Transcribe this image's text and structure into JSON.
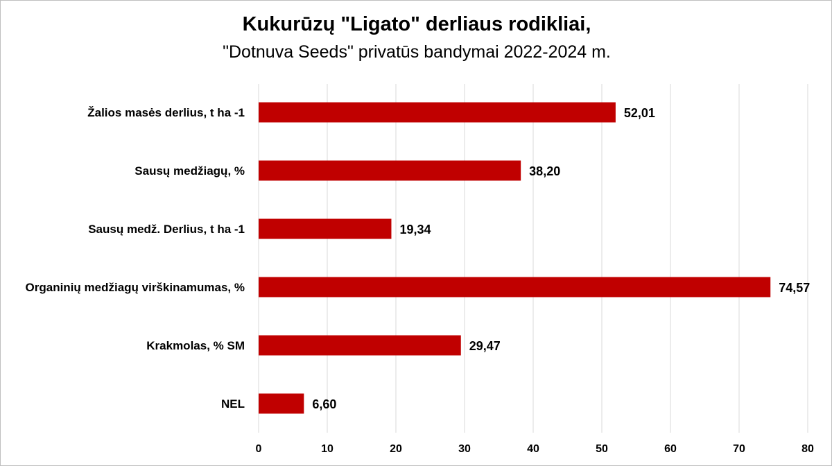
{
  "chart_data": {
    "type": "bar",
    "orientation": "horizontal",
    "title": "Kukurūzų \"Ligato\" derliaus rodikliai,",
    "subtitle": "\"Dotnuva Seeds\" privatūs bandymai 2022-2024 m.",
    "categories": [
      "Žalios masės derlius, t ha -1",
      "Sausų medžiagų, %",
      "Sausų medž. Derlius, t ha -1",
      "Organinių medžiagų virškinamumas, %",
      "Krakmolas, % SM",
      "NEL"
    ],
    "values": [
      52.01,
      38.2,
      19.34,
      74.57,
      29.47,
      6.6
    ],
    "value_labels": [
      "52,01",
      "38,20",
      "19,34",
      "74,57",
      "29,47",
      "6,60"
    ],
    "xlim": [
      0,
      80
    ],
    "xticks": [
      0,
      10,
      20,
      30,
      40,
      50,
      60,
      70,
      80
    ],
    "xlabel": "",
    "ylabel": "",
    "grid": "vertical",
    "legend": "none",
    "bar_color": "#c00000",
    "grid_color": "#d9d9d9"
  }
}
